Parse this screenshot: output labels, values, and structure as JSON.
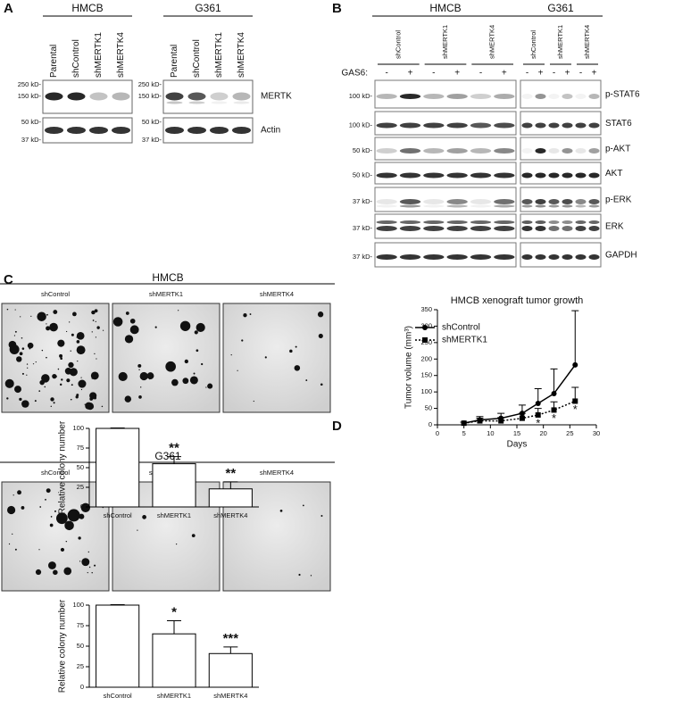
{
  "panel_letters": [
    "A",
    "B",
    "C",
    "D"
  ],
  "blot_a": {
    "groups": [
      {
        "name": "HMCB",
        "lanes": [
          "Parental",
          "shControl",
          "shMERTK1",
          "shMERTK4"
        ],
        "markers_top": [
          "250 kD-",
          "150 kD-"
        ],
        "markers_bottom": [
          "50 kD-",
          "37 kD-"
        ]
      },
      {
        "name": "G361",
        "lanes": [
          "Parental",
          "shControl",
          "shMERTK1",
          "shMERTK4"
        ],
        "markers_top": [
          "250 kD-",
          "150 kD-"
        ],
        "markers_bottom": [
          "50 kD-",
          "37 kD-"
        ]
      }
    ],
    "rows": [
      "MERTK",
      "Actin"
    ]
  },
  "blot_b": {
    "groups": [
      {
        "name": "HMCB",
        "lanes": [
          "shControl",
          "shMERTK1",
          "shMERTK4"
        ]
      },
      {
        "name": "G361",
        "lanes": [
          "shControl",
          "shMERTK1",
          "shMERTK4"
        ]
      }
    ],
    "treatment_label": "GAS6:",
    "treatment_states": [
      "-",
      "+"
    ],
    "rows": [
      {
        "label": "p-STAT6",
        "marker": "100 kD-"
      },
      {
        "label": "STAT6",
        "marker": "100 kD-"
      },
      {
        "label": "p-AKT",
        "marker": "50 kD-"
      },
      {
        "label": "AKT",
        "marker": "50 kD-"
      },
      {
        "label": "p-ERK",
        "marker": "37 kD-"
      },
      {
        "label": "ERK",
        "marker": "37 kD-"
      },
      {
        "label": "GAPDH",
        "marker": "37 kD-"
      }
    ]
  },
  "colony": [
    {
      "title": "HMCB",
      "images": [
        "shControl",
        "shMERTK1",
        "shMERTK4"
      ]
    },
    {
      "title": "G361",
      "images": [
        "shControl",
        "shMERTK1",
        "shMERTK4"
      ]
    }
  ],
  "chart_data": [
    {
      "type": "bar",
      "categories": [
        "shControl",
        "shMERTK1",
        "shMERTK4"
      ],
      "values": [
        100,
        55,
        23
      ],
      "errors": [
        0.5,
        9,
        9
      ],
      "ylabel": "Relative colony number",
      "ylim": [
        0,
        100
      ],
      "yticks": [
        0,
        25,
        50,
        75,
        100
      ],
      "color": "#ffffff",
      "annotations": [
        {
          "category": "shMERTK1",
          "text": "**"
        },
        {
          "category": "shMERTK4",
          "text": "**"
        }
      ]
    },
    {
      "type": "bar",
      "categories": [
        "shControl",
        "shMERTK1",
        "shMERTK4"
      ],
      "values": [
        100,
        65,
        41
      ],
      "errors": [
        0.5,
        16,
        8
      ],
      "ylabel": "Relative colony number",
      "ylim": [
        0,
        100
      ],
      "yticks": [
        0,
        25,
        50,
        75,
        100
      ],
      "color": "#ffffff",
      "annotations": [
        {
          "category": "shMERTK1",
          "text": "*"
        },
        {
          "category": "shMERTK4",
          "text": "***"
        }
      ]
    },
    {
      "type": "line",
      "title": "HMCB xenograft tumor growth",
      "xlabel": "Days",
      "ylabel": "Tumor volume (mm³)",
      "x": [
        5,
        8,
        12,
        16,
        19,
        22,
        26
      ],
      "series": [
        {
          "name": "shControl",
          "color": "#000000",
          "style": "solid",
          "marker": "circle",
          "values": [
            5,
            15,
            20,
            35,
            65,
            95,
            182
          ],
          "errors": [
            3,
            10,
            15,
            25,
            45,
            75,
            165
          ]
        },
        {
          "name": "shMERTK1",
          "color": "#000000",
          "style": "dashed",
          "marker": "square",
          "values": [
            5,
            12,
            12,
            20,
            30,
            45,
            72
          ],
          "errors": [
            3,
            8,
            10,
            15,
            20,
            25,
            42
          ]
        }
      ],
      "xlim": [
        0,
        30
      ],
      "xticks": [
        0,
        5,
        10,
        15,
        20,
        25,
        30
      ],
      "ylim": [
        0,
        350
      ],
      "yticks": [
        0,
        50,
        100,
        150,
        200,
        250,
        300,
        350
      ],
      "annotations": [
        {
          "x": 19,
          "text": "*"
        },
        {
          "x": 22,
          "text": "*"
        },
        {
          "x": 26,
          "text": "*"
        }
      ]
    }
  ]
}
